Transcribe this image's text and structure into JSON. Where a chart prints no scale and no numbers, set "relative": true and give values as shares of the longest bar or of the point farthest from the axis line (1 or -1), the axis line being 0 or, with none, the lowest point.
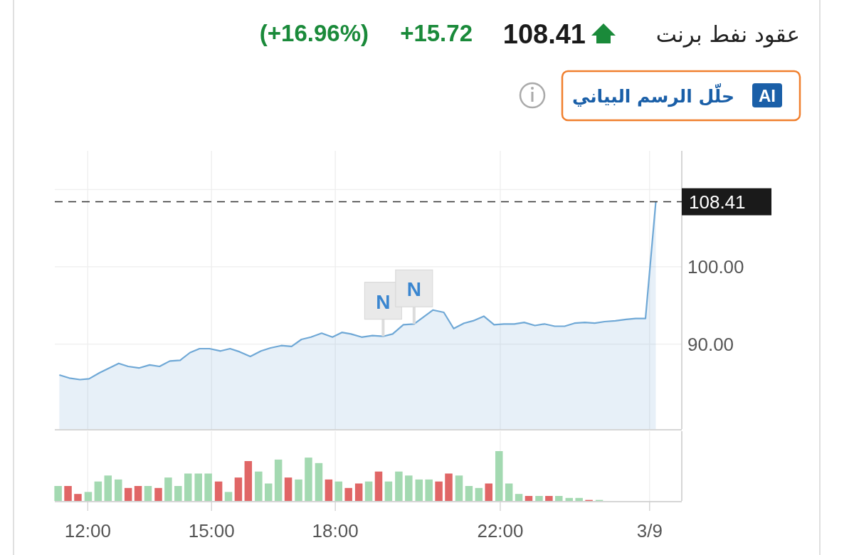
{
  "chart_data": [
    {
      "type": "area",
      "title": "عقود نفط برنت",
      "annotations": [
        "108.41",
        "+15.72",
        "(+16.96%)",
        "AI",
        "حلّل الرسم البياني",
        {
          "text": "N",
          "x": 19.16,
          "y": 91.0
        },
        {
          "text": "N",
          "x": 19.91,
          "y": 92.6
        }
      ],
      "x": [
        11.31,
        11.55,
        11.81,
        12.03,
        12.29,
        12.52,
        12.75,
        12.98,
        13.24,
        13.5,
        13.74,
        13.99,
        14.24,
        14.48,
        14.71,
        14.95,
        15.22,
        15.45,
        15.68,
        15.94,
        16.2,
        16.43,
        16.69,
        16.94,
        17.18,
        17.41,
        17.67,
        17.93,
        18.16,
        18.38,
        18.64,
        18.9,
        19.16,
        19.39,
        19.65,
        19.91,
        20.37,
        20.63,
        20.87,
        21.12,
        21.34,
        21.6,
        21.85,
        22.09,
        22.34,
        22.58,
        22.84,
        23.07,
        23.32,
        23.56,
        23.8,
        24.05,
        24.29,
        24.53,
        24.79,
        25.05,
        25.28,
        25.52,
        25.77
      ],
      "values": [
        86.0,
        85.6,
        85.4,
        85.5,
        86.3,
        86.9,
        87.5,
        87.1,
        86.9,
        87.3,
        87.1,
        87.8,
        87.9,
        88.9,
        89.4,
        89.4,
        89.1,
        89.4,
        89.0,
        88.4,
        89.1,
        89.5,
        89.8,
        89.7,
        90.6,
        90.9,
        91.4,
        90.9,
        91.5,
        91.3,
        90.9,
        91.1,
        91.0,
        91.3,
        92.5,
        92.6,
        94.4,
        94.1,
        92.0,
        92.7,
        93.0,
        93.6,
        92.5,
        92.6,
        92.6,
        92.8,
        92.4,
        92.6,
        92.3,
        92.3,
        92.7,
        92.8,
        92.7,
        92.9,
        93.0,
        93.2,
        93.3,
        93.3,
        108.4
      ],
      "color": "#6fa8d6",
      "xlim": [
        11.2,
        26.4
      ],
      "ylim": [
        79,
        115
      ],
      "xticks": [
        {
          "value": 12,
          "label": null
        },
        {
          "value": 15,
          "label": null
        },
        {
          "value": 18,
          "label": null
        },
        {
          "value": 22,
          "label": null
        },
        {
          "value": 25.62,
          "label": null
        }
      ],
      "yticks": [
        {
          "value": 90,
          "label": "90.00"
        },
        {
          "value": 100,
          "label": "100.00"
        },
        {
          "value": 110,
          "label": null
        }
      ],
      "grid": true,
      "tick_labels": "y",
      "ref_lines": [
        {
          "axis": "y",
          "value": 108.41,
          "label": "108.41",
          "color": "#333333",
          "line_style": "dashed"
        }
      ]
    },
    {
      "type": "bar",
      "relative": true,
      "x": [
        11.28,
        11.52,
        11.76,
        12.01,
        12.25,
        12.49,
        12.74,
        12.98,
        13.22,
        13.46,
        13.71,
        13.95,
        14.19,
        14.43,
        14.68,
        14.92,
        15.17,
        15.41,
        15.65,
        15.89,
        16.14,
        16.38,
        16.62,
        16.86,
        17.11,
        17.35,
        17.6,
        17.84,
        18.08,
        18.32,
        18.57,
        18.81,
        19.05,
        19.29,
        19.54,
        19.78,
        20.03,
        20.27,
        20.51,
        20.75,
        21.0,
        21.24,
        21.48,
        21.72,
        21.97,
        22.21,
        22.45,
        22.69,
        22.94,
        23.18,
        23.42,
        23.67,
        23.91,
        24.15,
        24.4
      ],
      "values": [
        0.3,
        0.3,
        0.14,
        0.18,
        0.39,
        0.51,
        0.43,
        0.26,
        0.3,
        0.3,
        0.26,
        0.47,
        0.3,
        0.55,
        0.55,
        0.55,
        0.39,
        0.18,
        0.47,
        0.8,
        0.59,
        0.35,
        0.83,
        0.47,
        0.43,
        0.87,
        0.76,
        0.43,
        0.39,
        0.26,
        0.35,
        0.39,
        0.59,
        0.39,
        0.59,
        0.51,
        0.43,
        0.43,
        0.39,
        0.55,
        0.51,
        0.3,
        0.26,
        0.35,
        1,
        0.35,
        0.14,
        0.1,
        0.1,
        0.1,
        0.1,
        0.06,
        0.06,
        0.02,
        0.02
      ],
      "colors": [
        "#a3d9b1",
        "#e06666",
        "#e06666",
        "#a3d9b1",
        "#a3d9b1",
        "#a3d9b1",
        "#a3d9b1",
        "#e06666",
        "#e06666",
        "#a3d9b1",
        "#e06666",
        "#a3d9b1",
        "#a3d9b1",
        "#a3d9b1",
        "#a3d9b1",
        "#a3d9b1",
        "#e06666",
        "#a3d9b1",
        "#e06666",
        "#e06666",
        "#a3d9b1",
        "#a3d9b1",
        "#a3d9b1",
        "#e06666",
        "#a3d9b1",
        "#a3d9b1",
        "#a3d9b1",
        "#e06666",
        "#a3d9b1",
        "#e06666",
        "#e06666",
        "#a3d9b1",
        "#e06666",
        "#a3d9b1",
        "#a3d9b1",
        "#a3d9b1",
        "#a3d9b1",
        "#a3d9b1",
        "#e06666",
        "#e06666",
        "#a3d9b1",
        "#a3d9b1",
        "#a3d9b1",
        "#e06666",
        "#a3d9b1",
        "#a3d9b1",
        "#a3d9b1",
        "#e06666",
        "#a3d9b1",
        "#e06666",
        "#a3d9b1",
        "#a3d9b1",
        "#a3d9b1",
        "#e06666",
        "#a3d9b1"
      ],
      "xlim": [
        11.2,
        26.4
      ],
      "xticks": [
        {
          "value": 12,
          "label": "12:00"
        },
        {
          "value": 15,
          "label": "15:00"
        },
        {
          "value": 18,
          "label": "18:00"
        },
        {
          "value": 22,
          "label": "22:00"
        },
        {
          "value": 25.62,
          "label": "3/9"
        }
      ],
      "grid": "x",
      "tick_labels": "x"
    }
  ]
}
